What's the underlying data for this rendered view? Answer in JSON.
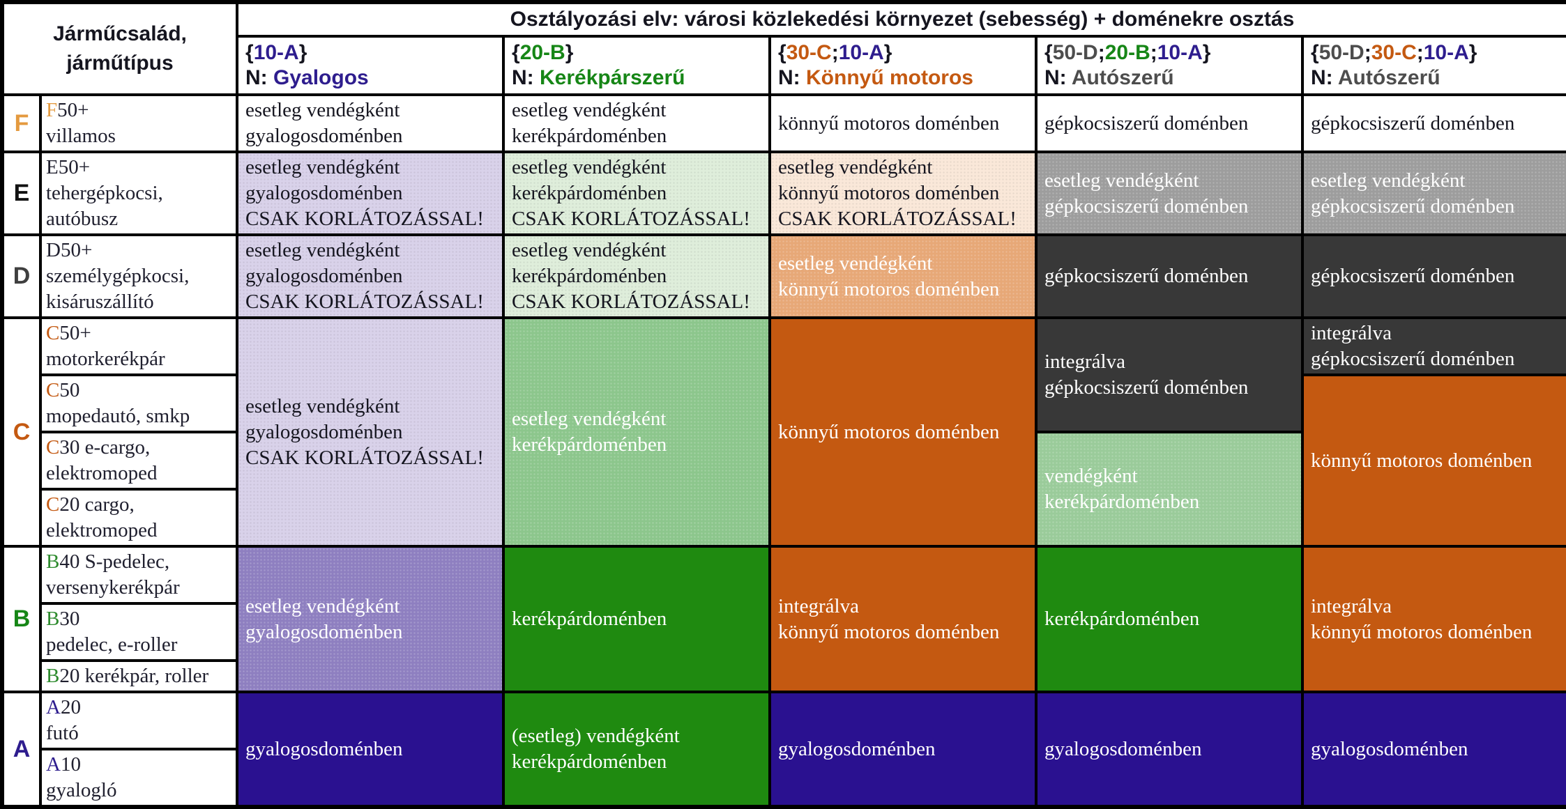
{
  "colors": {
    "navy": "#2e1d8e",
    "green": "#168616",
    "orange": "#c45911",
    "gray": "#4d4d4d",
    "dark_text": "#15151f",
    "cell_navy": "#2a1190",
    "cell_dark_green": "#1f8a10",
    "cell_dark_orange": "#c45911",
    "cell_charcoal": "#383838",
    "cell_mid_gray": "#9d9d9d",
    "cell_salmon": "#e7a877",
    "cell_purple": "#8e7fc0",
    "cell_mid_green": "#8cc68c",
    "cell_light_green_mid": "#9acb9a",
    "cell_lavender": "#d9d2ea",
    "cell_pale_green": "#dfeedb",
    "cell_peach": "#fae8d9"
  },
  "header": {
    "corner": "Járműcsalád,\njárműtípus",
    "title": "Osztályozási elv: városi közlekedési környezet (sebesség) + doménekre osztás",
    "columns": [
      {
        "code_segments": [
          {
            "text": "{",
            "color": "#15151f"
          },
          {
            "text": "10-A",
            "color": "#2e1d8e"
          },
          {
            "text": "}",
            "color": "#15151f"
          }
        ],
        "n_segments": [
          {
            "text": "N: ",
            "color": "#15151f"
          },
          {
            "text": "Gyalogos",
            "color": "#2e1d8e"
          }
        ]
      },
      {
        "code_segments": [
          {
            "text": "{",
            "color": "#15151f"
          },
          {
            "text": "20-B",
            "color": "#168616"
          },
          {
            "text": "}",
            "color": "#15151f"
          }
        ],
        "n_segments": [
          {
            "text": "N: ",
            "color": "#15151f"
          },
          {
            "text": "Kerékpárszerű",
            "color": "#168616"
          }
        ]
      },
      {
        "code_segments": [
          {
            "text": "{",
            "color": "#15151f"
          },
          {
            "text": "30-C",
            "color": "#c45911"
          },
          {
            "text": ";",
            "color": "#15151f"
          },
          {
            "text": "10-A",
            "color": "#2e1d8e"
          },
          {
            "text": "}",
            "color": "#15151f"
          }
        ],
        "n_segments": [
          {
            "text": "N: ",
            "color": "#15151f"
          },
          {
            "text": "Könnyű motoros",
            "color": "#c45911"
          }
        ]
      },
      {
        "code_segments": [
          {
            "text": "{",
            "color": "#15151f"
          },
          {
            "text": "50-D",
            "color": "#4d4d4d"
          },
          {
            "text": ";",
            "color": "#15151f"
          },
          {
            "text": "20-B",
            "color": "#168616"
          },
          {
            "text": ";",
            "color": "#15151f"
          },
          {
            "text": "10-A",
            "color": "#2e1d8e"
          },
          {
            "text": "}",
            "color": "#15151f"
          }
        ],
        "n_segments": [
          {
            "text": "N: ",
            "color": "#15151f"
          },
          {
            "text": "Autószerű",
            "color": "#4d4d4d"
          }
        ]
      },
      {
        "code_segments": [
          {
            "text": "{",
            "color": "#15151f"
          },
          {
            "text": "50-D",
            "color": "#4d4d4d"
          },
          {
            "text": ";",
            "color": "#15151f"
          },
          {
            "text": "30-C",
            "color": "#c45911"
          },
          {
            "text": ";",
            "color": "#15151f"
          },
          {
            "text": "10-A",
            "color": "#2e1d8e"
          },
          {
            "text": "}",
            "color": "#15151f"
          }
        ],
        "n_segments": [
          {
            "text": "N: ",
            "color": "#15151f"
          },
          {
            "text": "Autószerű",
            "color": "#4d4d4d"
          }
        ]
      }
    ]
  },
  "families": [
    {
      "letter": "F",
      "letter_color": "#e49a3f",
      "types": [
        {
          "segments": [
            {
              "text": "F",
              "color": "#e49a3f"
            },
            {
              "text": "50+\nvillamos",
              "color": "#20202f"
            }
          ]
        }
      ],
      "cells": [
        {
          "text": "esetleg vendégként\ngyalogosdoménben",
          "bg": "#ffffff",
          "fg": "#15151f"
        },
        {
          "text": "esetleg vendégként\nkerékpárdoménben",
          "bg": "#ffffff",
          "fg": "#15151f"
        },
        {
          "text": "könnyű motoros doménben",
          "bg": "#ffffff",
          "fg": "#15151f"
        },
        {
          "text": "gépkocsiszerű doménben",
          "bg": "#ffffff",
          "fg": "#15151f"
        },
        {
          "text": "gépkocsiszerű doménben",
          "bg": "#ffffff",
          "fg": "#15151f"
        }
      ]
    },
    {
      "letter": "E",
      "letter_color": "#111111",
      "types": [
        {
          "segments": [
            {
              "text": "E",
              "color": "#20202f"
            },
            {
              "text": "50+\ntehergépkocsi,\nautóbusz",
              "color": "#20202f"
            }
          ]
        }
      ],
      "cells": [
        {
          "text": "esetleg vendégként\ngyalogosdoménben\nCSAK KORLÁTOZÁSSAL!",
          "bg": "#d9d2ea",
          "fg": "#15151f"
        },
        {
          "text": "esetleg vendégként\nkerékpárdoménben\nCSAK KORLÁTOZÁSSAL!",
          "bg": "#dfeedb",
          "fg": "#15151f"
        },
        {
          "text": "esetleg vendégként\nkönnyű motoros doménben\nCSAK KORLÁTOZÁSSAL!",
          "bg": "#fae8d9",
          "fg": "#15151f"
        },
        {
          "text": "esetleg vendégként\ngépkocsiszerű doménben",
          "bg": "#9d9d9d",
          "fg": "#ffffff"
        },
        {
          "text": "esetleg vendégként\ngépkocsiszerű doménben",
          "bg": "#9d9d9d",
          "fg": "#ffffff"
        }
      ]
    },
    {
      "letter": "D",
      "letter_color": "#3f3f3f",
      "types": [
        {
          "segments": [
            {
              "text": "D",
              "color": "#20202f"
            },
            {
              "text": "50+\nszemélygépkocsi,\nkisáruszállító",
              "color": "#20202f"
            }
          ]
        }
      ],
      "cells": [
        {
          "text": "esetleg vendégként\ngyalogosdoménben\nCSAK KORLÁTOZÁSSAL!",
          "bg": "#d9d2ea",
          "fg": "#15151f"
        },
        {
          "text": "esetleg vendégként\nkerékpárdoménben\nCSAK KORLÁTOZÁSSAL!",
          "bg": "#dfeedb",
          "fg": "#15151f"
        },
        {
          "text": "esetleg vendégként\nkönnyű motoros doménben",
          "bg": "#e7a877",
          "fg": "#ffffff"
        },
        {
          "text": "gépkocsiszerű doménben",
          "bg": "#383838",
          "fg": "#ffffff"
        },
        {
          "text": "gépkocsiszerű doménben",
          "bg": "#383838",
          "fg": "#ffffff"
        }
      ]
    },
    {
      "letter": "C",
      "letter_color": "#c45911",
      "types": [
        {
          "segments": [
            {
              "text": "C",
              "color": "#c45911"
            },
            {
              "text": "50+\nmotorkerékpár",
              "color": "#20202f"
            }
          ]
        },
        {
          "segments": [
            {
              "text": "C",
              "color": "#c45911"
            },
            {
              "text": "50\nmopedautó, smkp",
              "color": "#20202f"
            }
          ]
        },
        {
          "segments": [
            {
              "text": "C",
              "color": "#c45911"
            },
            {
              "text": "30 e-cargo,\nelektromoped",
              "color": "#20202f"
            }
          ]
        },
        {
          "segments": [
            {
              "text": "C",
              "color": "#c45911"
            },
            {
              "text": "20 cargo,\nelektromoped",
              "color": "#20202f"
            }
          ]
        }
      ],
      "cells": [
        {
          "text": "esetleg vendégként\ngyalogosdoménben\nCSAK KORLÁTOZÁSSAL!",
          "bg": "#d9d2ea",
          "fg": "#15151f"
        },
        {
          "text": "esetleg vendégként\nkerékpárdoménben",
          "bg": "#8cc68c",
          "fg": "#ffffff"
        },
        {
          "text": "könnyű motoros doménben",
          "bg": "#c45911",
          "fg": "#ffffff"
        },
        {
          "text": "integrálva\ngépkocsiszerű doménben",
          "bg": "#383838",
          "fg": "#ffffff"
        },
        {
          "text": "vendégként\nkerékpárdoménben",
          "bg": "#9acb9a",
          "fg": "#ffffff"
        },
        {
          "text": "integrálva\ngépkocsiszerű doménben",
          "bg": "#383838",
          "fg": "#ffffff"
        },
        {
          "text": "könnyű motoros doménben",
          "bg": "#c45911",
          "fg": "#ffffff"
        }
      ]
    },
    {
      "letter": "B",
      "letter_color": "#168616",
      "types": [
        {
          "segments": [
            {
              "text": "B",
              "color": "#2e8b2e"
            },
            {
              "text": "40 S-pedelec,\nversenykerékpár",
              "color": "#20202f"
            }
          ]
        },
        {
          "segments": [
            {
              "text": "B",
              "color": "#2e8b2e"
            },
            {
              "text": "30\npedelec, e-roller",
              "color": "#20202f"
            }
          ]
        },
        {
          "segments": [
            {
              "text": "B",
              "color": "#2e8b2e"
            },
            {
              "text": "20 kerékpár, roller",
              "color": "#20202f"
            }
          ]
        }
      ],
      "cells": [
        {
          "text": "esetleg vendégként\ngyalogosdoménben",
          "bg": "#8e7fc0",
          "fg": "#ffffff"
        },
        {
          "text": "kerékpárdoménben",
          "bg": "#1f8a10",
          "fg": "#ffffff"
        },
        {
          "text": "integrálva\nkönnyű motoros doménben",
          "bg": "#c45911",
          "fg": "#ffffff"
        },
        {
          "text": "kerékpárdoménben",
          "bg": "#1f8a10",
          "fg": "#ffffff"
        },
        {
          "text": "integrálva\nkönnyű motoros doménben",
          "bg": "#c45911",
          "fg": "#ffffff"
        }
      ]
    },
    {
      "letter": "A",
      "letter_color": "#2e1d8e",
      "types": [
        {
          "segments": [
            {
              "text": "A",
              "color": "#2e1d8e"
            },
            {
              "text": "20\nfutó",
              "color": "#20202f"
            }
          ]
        },
        {
          "segments": [
            {
              "text": "A",
              "color": "#2e1d8e"
            },
            {
              "text": "10\ngyalogló",
              "color": "#20202f"
            }
          ]
        }
      ],
      "cells": [
        {
          "text": "gyalogosdoménben",
          "bg": "#2a1190",
          "fg": "#ffffff"
        },
        {
          "text": "(esetleg) vendégként\nkerékpárdoménben",
          "bg": "#1f8a10",
          "fg": "#ffffff"
        },
        {
          "text": "gyalogosdoménben",
          "bg": "#2a1190",
          "fg": "#ffffff"
        },
        {
          "text": "gyalogosdoménben",
          "bg": "#2a1190",
          "fg": "#ffffff"
        },
        {
          "text": "gyalogosdoménben",
          "bg": "#2a1190",
          "fg": "#ffffff"
        }
      ]
    }
  ]
}
